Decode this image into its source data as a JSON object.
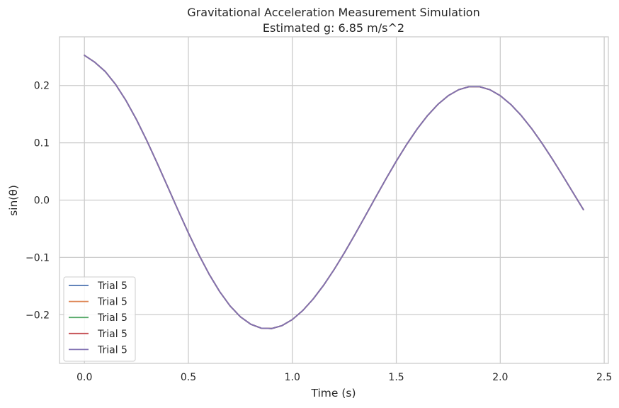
{
  "chart_data": {
    "type": "line",
    "title": "Gravitational Acceleration Measurement Simulation",
    "subtitle": "Estimated g: 6.85 m/s^2",
    "xlabel": "Time (s)",
    "ylabel": "sin(θ)",
    "xlim": [
      -0.12,
      2.52
    ],
    "ylim": [
      -0.285,
      0.285
    ],
    "x_ticks": [
      0.0,
      0.5,
      1.0,
      1.5,
      2.0,
      2.5
    ],
    "x_tick_labels": [
      "0.0",
      "0.5",
      "1.0",
      "1.5",
      "2.0",
      "2.5"
    ],
    "y_ticks": [
      -0.2,
      -0.1,
      0.0,
      0.1,
      0.2
    ],
    "y_tick_labels": [
      "−0.2",
      "−0.1",
      "0.0",
      "0.1",
      "0.2"
    ],
    "grid": true,
    "legend_position": "lower-left",
    "x": [
      0.0,
      0.05,
      0.1,
      0.15,
      0.2,
      0.25,
      0.3,
      0.35,
      0.4,
      0.45,
      0.5,
      0.55,
      0.6,
      0.65,
      0.7,
      0.75,
      0.8,
      0.85,
      0.9,
      0.95,
      1.0,
      1.05,
      1.1,
      1.15,
      1.2,
      1.25,
      1.3,
      1.35,
      1.4,
      1.45,
      1.5,
      1.55,
      1.6,
      1.65,
      1.7,
      1.75,
      1.8,
      1.85,
      1.9,
      1.95,
      2.0,
      2.05,
      2.1,
      2.15,
      2.2,
      2.25,
      2.3,
      2.35,
      2.4
    ],
    "series": [
      {
        "name": "Trial 5",
        "color": "#4c72b0",
        "values": [
          0.2527,
          0.2406,
          0.2245,
          0.2019,
          0.1737,
          0.1407,
          0.1039,
          0.0644,
          0.0236,
          -0.0174,
          -0.0574,
          -0.0951,
          -0.1295,
          -0.1595,
          -0.1845,
          -0.2037,
          -0.2167,
          -0.2235,
          -0.2242,
          -0.2191,
          -0.2085,
          -0.1928,
          -0.1727,
          -0.1488,
          -0.1217,
          -0.0921,
          -0.0607,
          -0.0282,
          0.0045,
          0.0368,
          0.068,
          0.0973,
          0.124,
          0.1475,
          0.1671,
          0.1823,
          0.1927,
          0.198,
          0.198,
          0.1927,
          0.1823,
          0.1672,
          0.148,
          0.1253,
          0.0997,
          0.072,
          0.0429,
          0.0131,
          -0.0167
        ]
      },
      {
        "name": "Trial 5",
        "color": "#dd8452",
        "values": [
          0.2527,
          0.2406,
          0.2245,
          0.2019,
          0.1737,
          0.1407,
          0.1039,
          0.0644,
          0.0236,
          -0.0174,
          -0.0574,
          -0.0951,
          -0.1295,
          -0.1595,
          -0.1845,
          -0.2037,
          -0.2167,
          -0.2235,
          -0.2242,
          -0.2191,
          -0.2085,
          -0.1928,
          -0.1727,
          -0.1488,
          -0.1217,
          -0.0921,
          -0.0607,
          -0.0282,
          0.0045,
          0.0368,
          0.068,
          0.0973,
          0.124,
          0.1475,
          0.1671,
          0.1823,
          0.1927,
          0.198,
          0.198,
          0.1927,
          0.1823,
          0.1672,
          0.148,
          0.1253,
          0.0997,
          0.072,
          0.0429,
          0.0131,
          -0.0167
        ]
      },
      {
        "name": "Trial 5",
        "color": "#55a868",
        "values": [
          0.2527,
          0.2406,
          0.2245,
          0.2019,
          0.1737,
          0.1407,
          0.1039,
          0.0644,
          0.0236,
          -0.0174,
          -0.0574,
          -0.0951,
          -0.1295,
          -0.1595,
          -0.1845,
          -0.2037,
          -0.2167,
          -0.2235,
          -0.2242,
          -0.2191,
          -0.2085,
          -0.1928,
          -0.1727,
          -0.1488,
          -0.1217,
          -0.0921,
          -0.0607,
          -0.0282,
          0.0045,
          0.0368,
          0.068,
          0.0973,
          0.124,
          0.1475,
          0.1671,
          0.1823,
          0.1927,
          0.198,
          0.198,
          0.1927,
          0.1823,
          0.1672,
          0.148,
          0.1253,
          0.0997,
          0.072,
          0.0429,
          0.0131,
          -0.0167
        ]
      },
      {
        "name": "Trial 5",
        "color": "#c44e52",
        "values": [
          0.2527,
          0.2406,
          0.2245,
          0.2019,
          0.1737,
          0.1407,
          0.1039,
          0.0644,
          0.0236,
          -0.0174,
          -0.0574,
          -0.0951,
          -0.1295,
          -0.1595,
          -0.1845,
          -0.2037,
          -0.2167,
          -0.2235,
          -0.2242,
          -0.2191,
          -0.2085,
          -0.1928,
          -0.1727,
          -0.1488,
          -0.1217,
          -0.0921,
          -0.0607,
          -0.0282,
          0.0045,
          0.0368,
          0.068,
          0.0973,
          0.124,
          0.1475,
          0.1671,
          0.1823,
          0.1927,
          0.198,
          0.198,
          0.1927,
          0.1823,
          0.1672,
          0.148,
          0.1253,
          0.0997,
          0.072,
          0.0429,
          0.0131,
          -0.0167
        ]
      },
      {
        "name": "Trial 5",
        "color": "#8172b3",
        "values": [
          0.2527,
          0.2406,
          0.2245,
          0.2019,
          0.1737,
          0.1407,
          0.1039,
          0.0644,
          0.0236,
          -0.0174,
          -0.0574,
          -0.0951,
          -0.1295,
          -0.1595,
          -0.1845,
          -0.2037,
          -0.2167,
          -0.2235,
          -0.2242,
          -0.2191,
          -0.2085,
          -0.1928,
          -0.1727,
          -0.1488,
          -0.1217,
          -0.0921,
          -0.0607,
          -0.0282,
          0.0045,
          0.0368,
          0.068,
          0.0973,
          0.124,
          0.1475,
          0.1671,
          0.1823,
          0.1927,
          0.198,
          0.198,
          0.1927,
          0.1823,
          0.1672,
          0.148,
          0.1253,
          0.0997,
          0.072,
          0.0429,
          0.0131,
          -0.0167
        ]
      }
    ]
  }
}
